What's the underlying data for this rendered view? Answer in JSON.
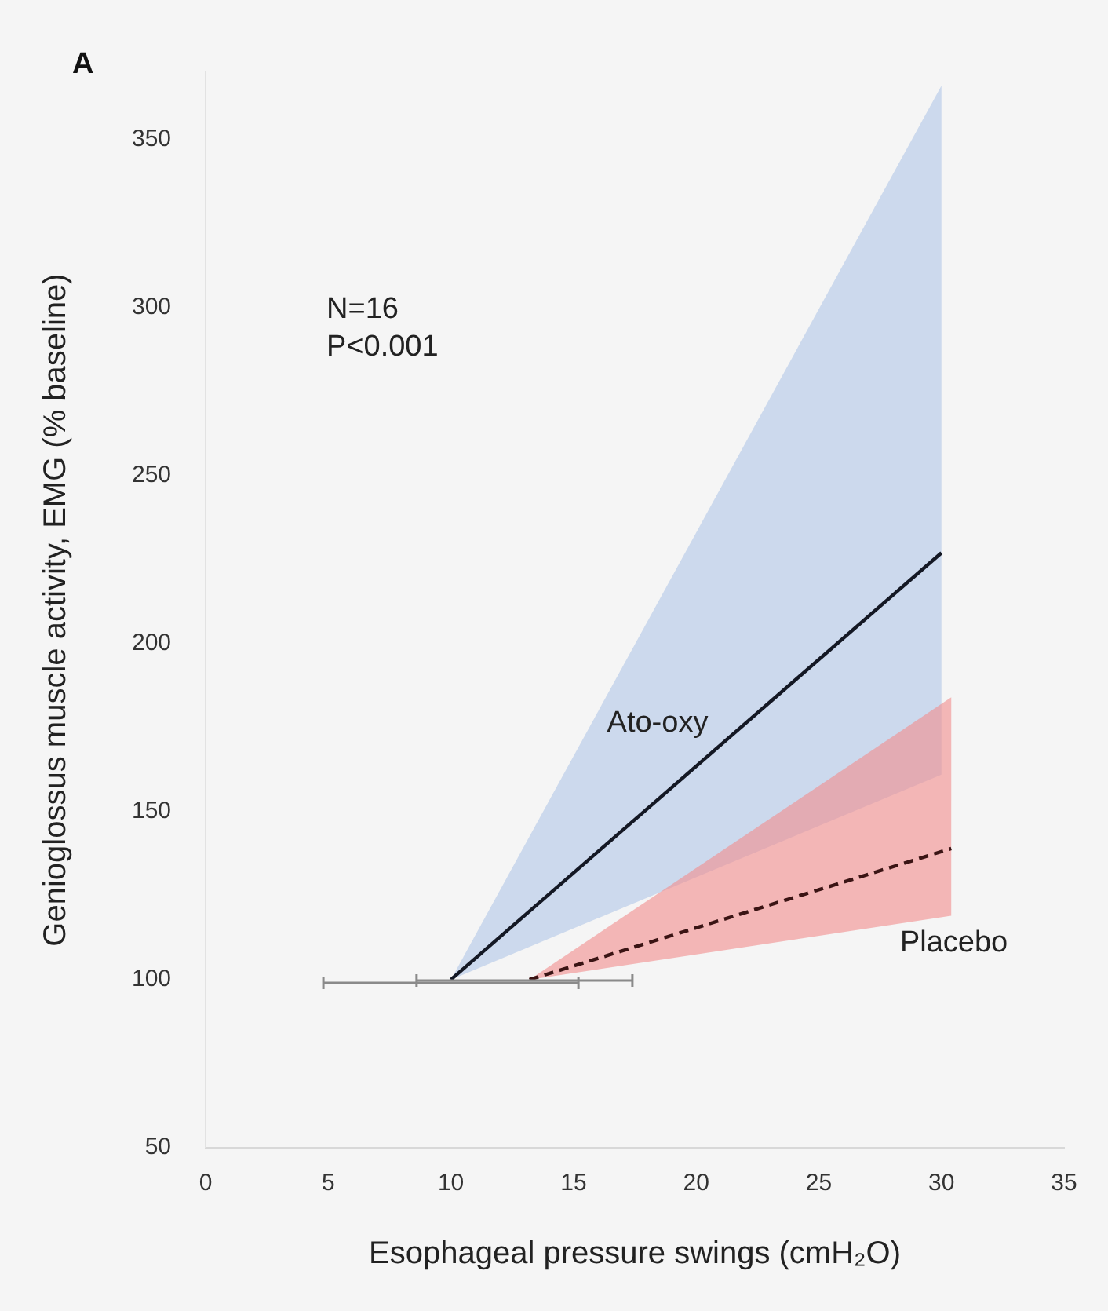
{
  "chart_data": {
    "type": "line",
    "xlabel": "Esophageal pressure swings (cmH₂O)",
    "ylabel": "Genioglossus muscle activity, EMG (% baseline)",
    "annotations": [
      "A",
      "N=16\nP<0.001"
    ],
    "xlim": [
      0,
      35
    ],
    "xticks": [
      0,
      5,
      10,
      15,
      20,
      25,
      30,
      35
    ],
    "ylim": [
      50,
      370
    ],
    "yticks": [
      50,
      100,
      150,
      200,
      250,
      300,
      350
    ],
    "grid": false,
    "legend": false,
    "marker": "none",
    "series": [
      {
        "name": "Ato-oxy",
        "color": "#141824",
        "line_style": "solid",
        "x": [
          10,
          30
        ],
        "values": [
          100,
          227
        ],
        "lower": [
          100,
          161
        ],
        "upper": [
          100,
          366
        ],
        "xerrors": [
          [
            4.8,
            15.2
          ],
          null
        ]
      },
      {
        "name": "Placebo",
        "color": "#3a1414",
        "line_style": "dashed",
        "x": [
          13.2,
          30.4
        ],
        "values": [
          100,
          139
        ],
        "lower": [
          100,
          119
        ],
        "upper": [
          100,
          184
        ],
        "xerrors": [
          [
            8.6,
            17.4
          ],
          null
        ]
      }
    ]
  }
}
